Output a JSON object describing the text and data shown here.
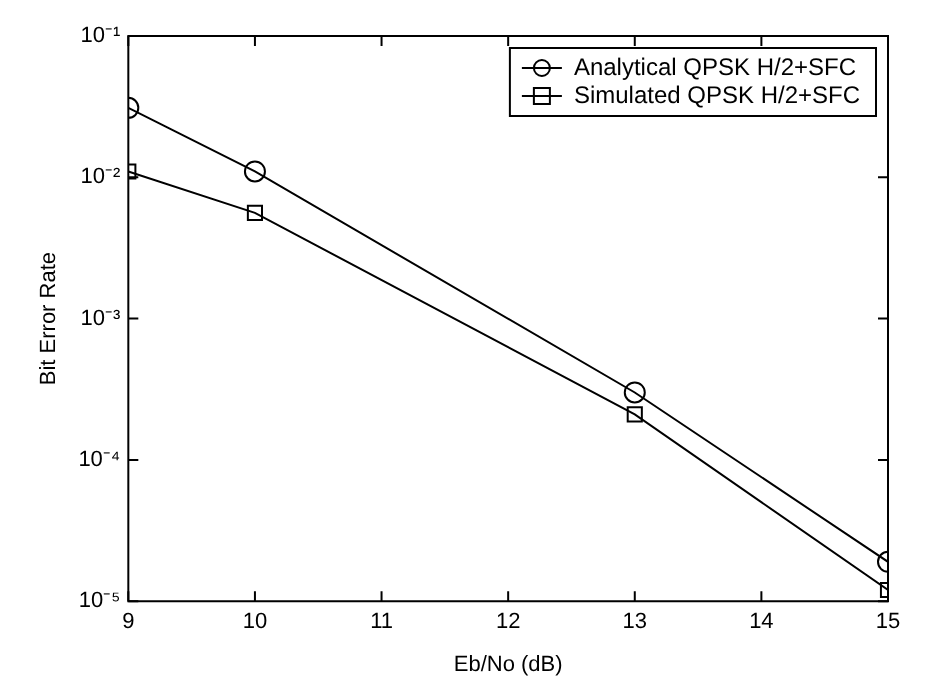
{
  "chart_data": {
    "type": "line",
    "xlabel": "Eb/No (dB)",
    "ylabel": "Bit Error Rate",
    "log": "y",
    "xlim": [
      9,
      15
    ],
    "xticks": [
      9,
      10,
      11,
      12,
      13,
      14,
      15
    ],
    "ylim": [
      1e-05,
      0.1
    ],
    "yticks": [
      {
        "value": 1e-05,
        "label": "10⁻⁵"
      },
      {
        "value": 0.0001,
        "label": "10⁻⁴"
      },
      {
        "value": 0.001,
        "label": "10⁻³"
      },
      {
        "value": 0.01,
        "label": "10⁻²"
      },
      {
        "value": 0.1,
        "label": "10⁻¹"
      }
    ],
    "x": [
      9,
      10,
      13,
      15
    ],
    "grid": false,
    "legend": "top right",
    "series": [
      {
        "name": "Analytical QPSK H/2+SFC",
        "color": "#000000",
        "marker": "circle",
        "values": [
          0.031,
          0.011,
          0.0003,
          1.9e-05
        ]
      },
      {
        "name": "Simulated QPSK H/2+SFC",
        "color": "#000000",
        "marker": "square",
        "values": [
          0.011,
          0.0056,
          0.00021,
          1.2e-05
        ]
      }
    ]
  }
}
